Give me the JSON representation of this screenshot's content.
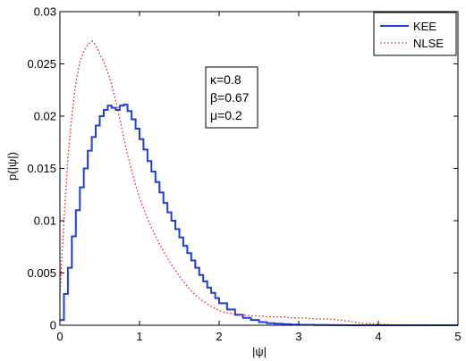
{
  "chart_data": {
    "type": "line",
    "xlabel": "|ψ|",
    "ylabel": "p(|ψ|)",
    "xlim": [
      0,
      5
    ],
    "ylim": [
      0,
      0.03
    ],
    "xticks": [
      0,
      1,
      2,
      3,
      4,
      5
    ],
    "yticks": [
      0,
      0.005,
      0.01,
      0.015,
      0.02,
      0.025,
      0.03
    ],
    "xtick_labels": [
      "0",
      "1",
      "2",
      "3",
      "4",
      "5"
    ],
    "ytick_labels": [
      "0",
      "0.005",
      "0.01",
      "0.015",
      "0.02",
      "0.025",
      "0.03"
    ],
    "grid": false,
    "legend_position": "top-right",
    "annotation_lines": [
      "κ=0.8",
      "β=0.67",
      "μ=0.2"
    ],
    "series": [
      {
        "name": "KEE",
        "color": "#1f3fd8",
        "style": "solid-step",
        "x": [
          0.0,
          0.05,
          0.1,
          0.15,
          0.2,
          0.25,
          0.3,
          0.35,
          0.4,
          0.45,
          0.5,
          0.55,
          0.6,
          0.65,
          0.7,
          0.75,
          0.8,
          0.85,
          0.9,
          0.95,
          1.0,
          1.05,
          1.1,
          1.15,
          1.2,
          1.25,
          1.3,
          1.35,
          1.4,
          1.45,
          1.5,
          1.55,
          1.6,
          1.65,
          1.7,
          1.75,
          1.8,
          1.85,
          1.9,
          1.95,
          2.0,
          2.1,
          2.2,
          2.3,
          2.4,
          2.5,
          2.6,
          2.7,
          2.8,
          2.9,
          3.0,
          3.2,
          3.4,
          3.6,
          4.0,
          4.5,
          5.0
        ],
        "y": [
          0.0005,
          0.003,
          0.0055,
          0.0085,
          0.011,
          0.0132,
          0.015,
          0.0167,
          0.018,
          0.0191,
          0.02,
          0.0206,
          0.021,
          0.0208,
          0.0206,
          0.021,
          0.0211,
          0.0205,
          0.0197,
          0.0188,
          0.0178,
          0.0168,
          0.0157,
          0.0147,
          0.0137,
          0.0127,
          0.0117,
          0.0108,
          0.01,
          0.0092,
          0.0084,
          0.0076,
          0.0069,
          0.0062,
          0.0055,
          0.0048,
          0.0042,
          0.0036,
          0.0031,
          0.0026,
          0.0021,
          0.0015,
          0.001,
          0.0007,
          0.0005,
          0.0003,
          0.0002,
          0.00015,
          0.0001,
          6e-05,
          4e-05,
          2e-05,
          1e-05,
          0.0,
          0.0,
          0.0,
          0.0
        ]
      },
      {
        "name": "NLSE",
        "color": "#e31a1c",
        "style": "dotted",
        "x": [
          0.0,
          0.05,
          0.1,
          0.15,
          0.2,
          0.25,
          0.3,
          0.35,
          0.4,
          0.45,
          0.5,
          0.55,
          0.6,
          0.65,
          0.7,
          0.75,
          0.8,
          0.85,
          0.9,
          0.95,
          1.0,
          1.1,
          1.2,
          1.3,
          1.4,
          1.5,
          1.6,
          1.7,
          1.8,
          1.9,
          2.0,
          2.1,
          2.2,
          2.3,
          2.4,
          2.5,
          2.6,
          2.7,
          2.8,
          2.9,
          3.0,
          3.1,
          3.2,
          3.3,
          3.4,
          3.5,
          3.6,
          3.7,
          3.8,
          4.0,
          4.2,
          4.5,
          5.0
        ],
        "y": [
          0.003,
          0.01,
          0.016,
          0.02,
          0.0232,
          0.0252,
          0.0262,
          0.0268,
          0.0272,
          0.0268,
          0.026,
          0.0252,
          0.0242,
          0.023,
          0.0215,
          0.0198,
          0.018,
          0.0163,
          0.0148,
          0.0134,
          0.0122,
          0.0102,
          0.0085,
          0.0071,
          0.0058,
          0.0047,
          0.0037,
          0.0029,
          0.0023,
          0.0018,
          0.0014,
          0.0012,
          0.0011,
          0.001,
          0.0009,
          0.0009,
          0.0008,
          0.0008,
          0.0008,
          0.0007,
          0.0007,
          0.0007,
          0.0006,
          0.0006,
          0.0006,
          0.0005,
          0.0004,
          0.0003,
          0.0002,
          0.0001,
          5e-05,
          2e-05,
          0.0
        ]
      }
    ]
  }
}
